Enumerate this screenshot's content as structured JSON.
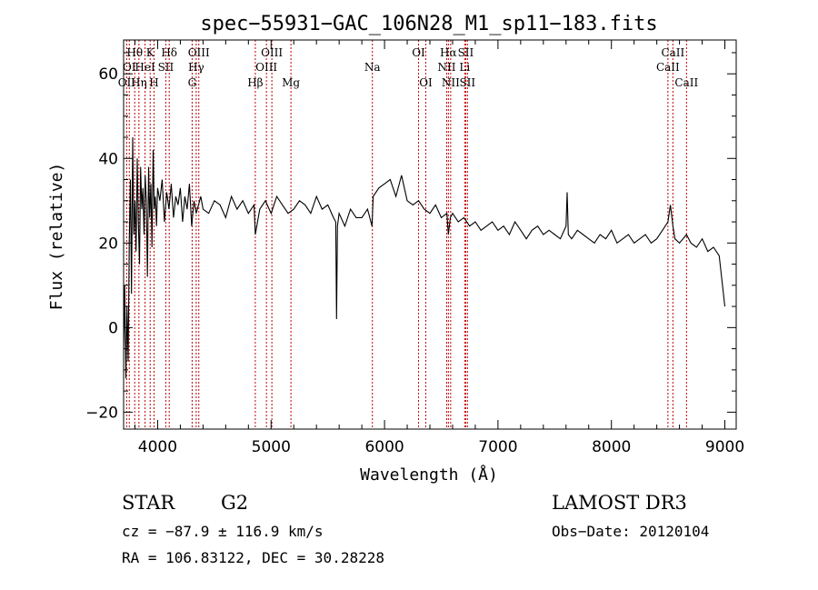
{
  "chart_data": {
    "type": "line",
    "title": "spec−55931−GAC_106N28_M1_sp11−183.fits",
    "xlabel": "Wavelength (Å)",
    "ylabel": "Flux (relative)",
    "xlim": [
      3700,
      9100
    ],
    "ylim": [
      -24,
      68
    ],
    "xticks": [
      4000,
      5000,
      6000,
      7000,
      8000,
      9000
    ],
    "xtick_labels": [
      "4000",
      "5000",
      "6000",
      "7000",
      "8000",
      "9000"
    ],
    "yticks": [
      -20,
      0,
      20,
      40,
      60
    ],
    "ytick_labels": [
      "−20",
      "0",
      "20",
      "40",
      "60"
    ],
    "series": [
      {
        "name": "flux",
        "x": [
          3700,
          3710,
          3720,
          3730,
          3740,
          3750,
          3760,
          3770,
          3780,
          3790,
          3800,
          3810,
          3820,
          3830,
          3840,
          3850,
          3860,
          3870,
          3880,
          3890,
          3900,
          3910,
          3920,
          3930,
          3940,
          3950,
          3960,
          3970,
          3980,
          3990,
          4000,
          4020,
          4040,
          4060,
          4080,
          4100,
          4120,
          4140,
          4160,
          4180,
          4200,
          4220,
          4240,
          4260,
          4280,
          4300,
          4320,
          4340,
          4360,
          4380,
          4400,
          4450,
          4500,
          4550,
          4600,
          4650,
          4700,
          4750,
          4800,
          4850,
          4861,
          4900,
          4950,
          5000,
          5050,
          5100,
          5150,
          5200,
          5250,
          5300,
          5350,
          5400,
          5450,
          5500,
          5550,
          5570,
          5577,
          5585,
          5600,
          5650,
          5700,
          5750,
          5800,
          5850,
          5890,
          5900,
          5950,
          6000,
          6050,
          6100,
          6150,
          6200,
          6250,
          6300,
          6350,
          6400,
          6450,
          6500,
          6550,
          6563,
          6580,
          6600,
          6650,
          6700,
          6750,
          6800,
          6850,
          6900,
          6950,
          7000,
          7050,
          7100,
          7150,
          7200,
          7250,
          7300,
          7350,
          7400,
          7450,
          7500,
          7550,
          7600,
          7610,
          7620,
          7650,
          7700,
          7750,
          7800,
          7850,
          7900,
          7950,
          8000,
          8050,
          8100,
          8150,
          8200,
          8250,
          8300,
          8350,
          8400,
          8450,
          8498,
          8520,
          8542,
          8560,
          8600,
          8662,
          8700,
          8750,
          8800,
          8850,
          8900,
          8950,
          9000
        ],
        "values": [
          -5,
          10,
          -12,
          5,
          -8,
          20,
          35,
          8,
          45,
          22,
          30,
          18,
          40,
          25,
          15,
          38,
          28,
          33,
          22,
          36,
          30,
          12,
          38,
          26,
          34,
          19,
          42,
          28,
          31,
          24,
          33,
          30,
          35,
          25,
          32,
          28,
          34,
          26,
          31,
          29,
          33,
          25,
          31,
          28,
          34,
          24,
          30,
          27,
          29,
          31,
          28,
          27,
          30,
          29,
          26,
          31,
          28,
          30,
          27,
          29,
          22,
          28,
          30,
          27,
          31,
          29,
          27,
          28,
          30,
          29,
          27,
          31,
          28,
          29,
          26,
          25,
          2,
          24,
          27,
          24,
          28,
          26,
          26,
          28,
          24,
          31,
          33,
          34,
          35,
          31,
          36,
          30,
          29,
          30,
          28,
          27,
          29,
          26,
          27,
          22,
          26,
          27,
          25,
          26,
          24,
          25,
          23,
          24,
          25,
          23,
          24,
          22,
          25,
          23,
          21,
          23,
          24,
          22,
          23,
          22,
          21,
          24,
          32,
          22,
          21,
          23,
          22,
          21,
          20,
          22,
          21,
          23,
          20,
          21,
          22,
          20,
          21,
          22,
          20,
          21,
          23,
          25,
          29,
          24,
          21,
          20,
          22,
          20,
          19,
          21,
          18,
          19,
          17,
          5
        ]
      }
    ],
    "line_markers": [
      {
        "wavelength": 3727,
        "label": "OII",
        "row": 3
      },
      {
        "wavelength": 3750,
        "label": "OI",
        "row": 2
      },
      {
        "wavelength": 3798,
        "label": "Hθ",
        "row": 1
      },
      {
        "wavelength": 3835,
        "label": "Hη",
        "row": 3
      },
      {
        "wavelength": 3889,
        "label": "HeI",
        "row": 2
      },
      {
        "wavelength": 3934,
        "label": "K",
        "row": 1
      },
      {
        "wavelength": 3968,
        "label": "H",
        "row": 3
      },
      {
        "wavelength": 4072,
        "label": "SII",
        "row": 2
      },
      {
        "wavelength": 4102,
        "label": "Hδ",
        "row": 1
      },
      {
        "wavelength": 4304,
        "label": "G",
        "row": 3
      },
      {
        "wavelength": 4340,
        "label": "Hγ",
        "row": 2
      },
      {
        "wavelength": 4363,
        "label": "OIII",
        "row": 1
      },
      {
        "wavelength": 4861,
        "label": "Hβ",
        "row": 3
      },
      {
        "wavelength": 4959,
        "label": "OIII",
        "row": 2
      },
      {
        "wavelength": 5007,
        "label": "OIII",
        "row": 1
      },
      {
        "wavelength": 5175,
        "label": "Mg",
        "row": 3
      },
      {
        "wavelength": 5893,
        "label": "Na",
        "row": 2
      },
      {
        "wavelength": 6300,
        "label": "OI",
        "row": 1
      },
      {
        "wavelength": 6364,
        "label": "OI",
        "row": 3
      },
      {
        "wavelength": 6548,
        "label": "NII",
        "row": 2
      },
      {
        "wavelength": 6563,
        "label": "Hα",
        "row": 1
      },
      {
        "wavelength": 6583,
        "label": "NII",
        "row": 3
      },
      {
        "wavelength": 6707,
        "label": "Li",
        "row": 2
      },
      {
        "wavelength": 6716,
        "label": "SII",
        "row": 1
      },
      {
        "wavelength": 6731,
        "label": "SII",
        "row": 3
      },
      {
        "wavelength": 8498,
        "label": "CaII",
        "row": 2
      },
      {
        "wavelength": 8542,
        "label": "CaII",
        "row": 1
      },
      {
        "wavelength": 8662,
        "label": "CaII",
        "row": 3
      }
    ]
  },
  "info": {
    "object_class": "STAR",
    "subclass": "G2",
    "survey": "LAMOST DR3",
    "cz": "cz = −87.9 ± 116.9 km/s",
    "obs_date": "Obs−Date: 20120104",
    "coords": "RA = 106.83122, DEC =  30.28228"
  },
  "colors": {
    "spectrum": "#000000",
    "marker": "#c00000",
    "axes": "#000000",
    "background": "#ffffff"
  }
}
